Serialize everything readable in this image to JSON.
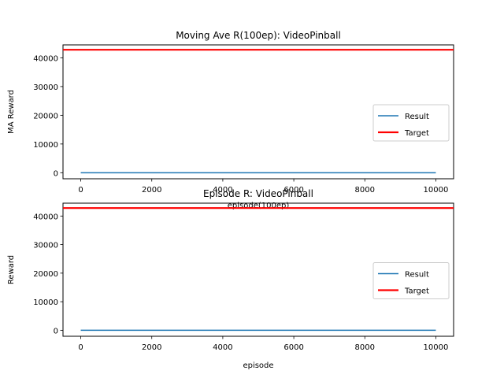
{
  "chart_data": [
    {
      "type": "line",
      "title": "Moving Ave R(100ep): VideoPinball",
      "xlabel": "episode(100ep)",
      "ylabel": "MA Reward",
      "xlim": [
        -500,
        10500
      ],
      "ylim": [
        -2100,
        44500
      ],
      "xticks": [
        0,
        2000,
        4000,
        6000,
        8000,
        10000
      ],
      "yticks": [
        0,
        10000,
        20000,
        30000,
        40000
      ],
      "legend_position": "center-right",
      "series": [
        {
          "name": "Result",
          "color": "#1f77b4",
          "x": [
            0,
            10000
          ],
          "y": [
            0,
            0
          ]
        },
        {
          "name": "Target",
          "color": "#ff0000",
          "x": [
            -500,
            10500
          ],
          "y": [
            42800,
            42800
          ]
        }
      ]
    },
    {
      "type": "line",
      "title": "Episode R: VideoPinball",
      "xlabel": "episode",
      "ylabel": "Reward",
      "xlim": [
        -500,
        10500
      ],
      "ylim": [
        -2100,
        44500
      ],
      "xticks": [
        0,
        2000,
        4000,
        6000,
        8000,
        10000
      ],
      "yticks": [
        0,
        10000,
        20000,
        30000,
        40000
      ],
      "legend_position": "center-right",
      "series": [
        {
          "name": "Result",
          "color": "#1f77b4",
          "x": [
            0,
            10000
          ],
          "y": [
            0,
            0
          ]
        },
        {
          "name": "Target",
          "color": "#ff0000",
          "x": [
            -500,
            10500
          ],
          "y": [
            42800,
            42800
          ]
        }
      ]
    }
  ]
}
